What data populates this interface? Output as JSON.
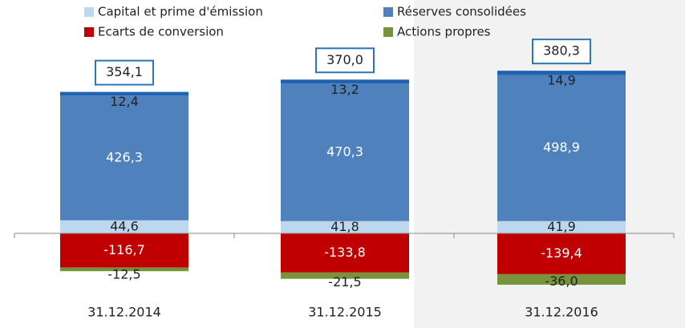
{
  "chart_data": {
    "type": "bar",
    "stacked": true,
    "categories": [
      "31.12.2014",
      "31.12.2015",
      "31.12.2016"
    ],
    "series": [
      {
        "name": "Capital et prime d'émission",
        "color": "#bdd7ee",
        "values": [
          44.6,
          41.8,
          41.9
        ],
        "value_labels": [
          "44,6",
          "41,8",
          "41,9"
        ]
      },
      {
        "name": "Réserves consolidées",
        "color": "#4f81bd",
        "values": [
          426.3,
          470.3,
          498.9
        ],
        "value_labels": [
          "426,3",
          "470,3",
          "498,9"
        ]
      },
      {
        "name": null,
        "color": "#1f63b0",
        "values": [
          12.4,
          13.2,
          14.9
        ],
        "value_labels": [
          "12,4",
          "13,2",
          "14,9"
        ]
      },
      {
        "name": "Ecarts de conversion",
        "color": "#c00000",
        "values": [
          -116.7,
          -133.8,
          -139.4
        ],
        "value_labels": [
          "-116,7",
          "-133,8",
          "-139,4"
        ]
      },
      {
        "name": "Actions propres",
        "color": "#77933c",
        "values": [
          -12.5,
          -21.5,
          -36.0
        ],
        "value_labels": [
          "-12,5",
          "-21,5",
          "-36,0"
        ]
      }
    ],
    "totals": [
      354.1,
      370.0,
      380.3
    ],
    "totals_labels": [
      "354,1",
      "370,0",
      "380,3"
    ]
  }
}
